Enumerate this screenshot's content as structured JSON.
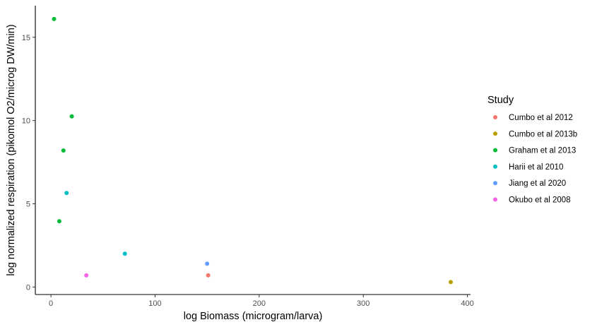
{
  "chart_data": {
    "type": "scatter",
    "xlabel": "log Biomass (microgram/larva)",
    "ylabel": "log normalized respiration (pikomol O2/microg DW/min)",
    "xlim": [
      -15,
      403
    ],
    "ylim": [
      -0.45,
      16.9
    ],
    "x_ticks": [
      0,
      100,
      200,
      300,
      400
    ],
    "y_ticks": [
      0,
      5,
      10,
      15
    ],
    "grid": false,
    "legend": {
      "title": "Study",
      "placement": "right"
    },
    "series": [
      {
        "name": "Cumbo et al 2012",
        "color": "#F8766D",
        "points": [
          {
            "x": 151,
            "y": 0.7
          }
        ]
      },
      {
        "name": "Cumbo et al 2013b",
        "color": "#B79F00",
        "points": [
          {
            "x": 384,
            "y": 0.3
          }
        ]
      },
      {
        "name": "Graham et al 2013",
        "color": "#00BA38",
        "points": [
          {
            "x": 3,
            "y": 16.1
          },
          {
            "x": 20,
            "y": 10.25
          },
          {
            "x": 12,
            "y": 8.2
          },
          {
            "x": 8,
            "y": 3.95
          }
        ]
      },
      {
        "name": "Harii et al 2010",
        "color": "#00BFC4",
        "points": [
          {
            "x": 15,
            "y": 5.65
          },
          {
            "x": 71,
            "y": 2.0
          }
        ]
      },
      {
        "name": "Jiang et al 2020",
        "color": "#619CFF",
        "points": [
          {
            "x": 150,
            "y": 1.4
          }
        ]
      },
      {
        "name": "Okubo et al 2008",
        "color": "#F564E3",
        "points": [
          {
            "x": 34,
            "y": 0.7
          }
        ]
      }
    ]
  }
}
